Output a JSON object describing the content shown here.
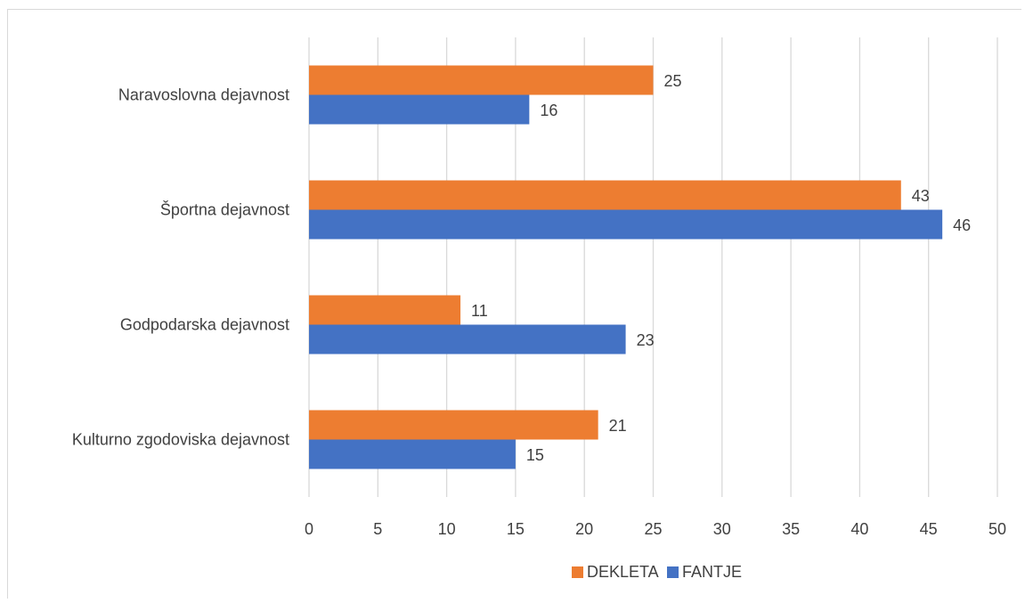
{
  "chart_data": {
    "type": "bar",
    "orientation": "horizontal",
    "title": "",
    "xlabel": "",
    "ylabel": "",
    "categories": [
      "Naravoslovna dejavnost",
      "Športna dejavnost",
      "Godpodarska dejavnost",
      "Kulturno zgodoviska dejavnost"
    ],
    "series": [
      {
        "name": "DEKLETA",
        "color": "#ED7D31",
        "values": [
          25,
          43,
          11,
          21
        ]
      },
      {
        "name": "FANTJE",
        "color": "#4472C4",
        "values": [
          16,
          46,
          23,
          15
        ]
      }
    ],
    "xlim": [
      0,
      50
    ],
    "xticks": [
      "0",
      "5",
      "10",
      "15",
      "20",
      "25",
      "30",
      "35",
      "40",
      "45",
      "50"
    ],
    "grid": true,
    "legend_position": "bottom",
    "data_labels": true
  },
  "colors": {
    "grid": "#d9d9d9",
    "text": "#404040"
  }
}
